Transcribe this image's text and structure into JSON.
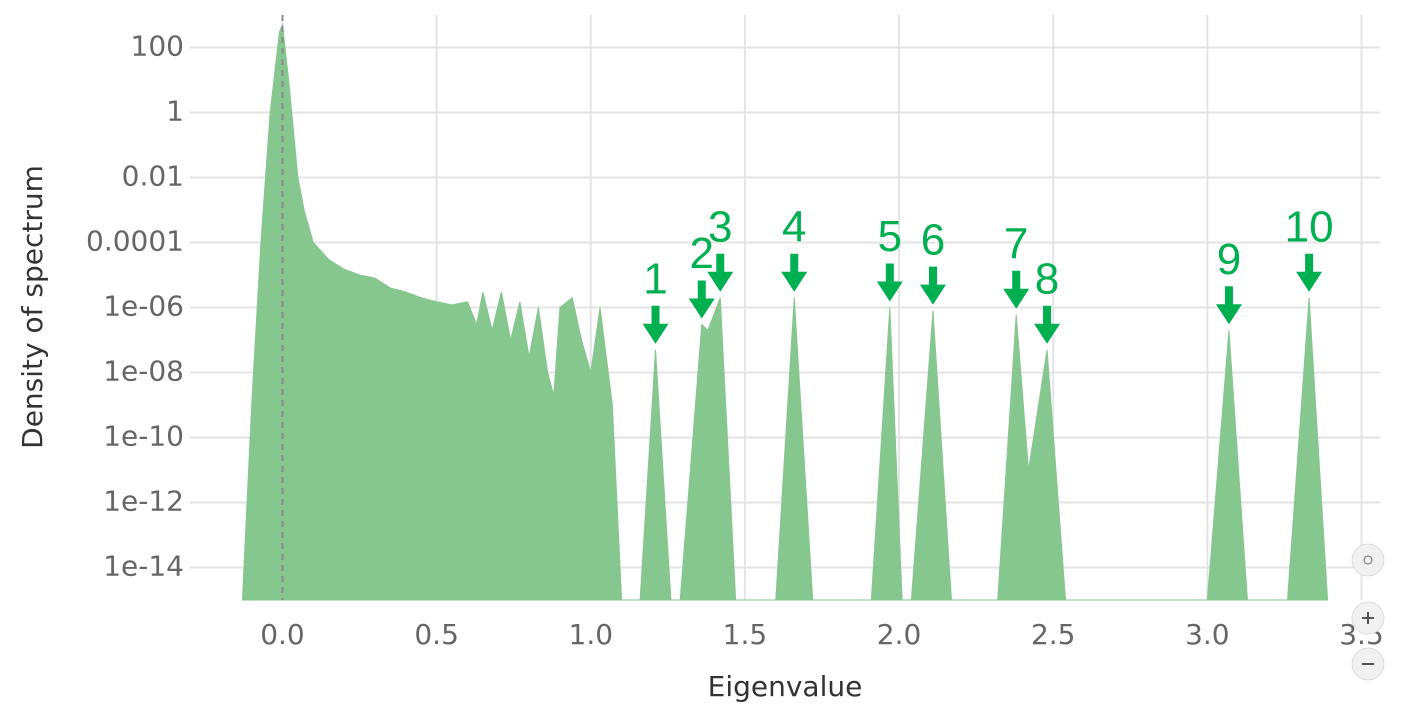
{
  "chart_data": {
    "type": "area",
    "x_label": "Eigenvalue",
    "y_label": "Density of spectrum",
    "log_y": true,
    "grid": true,
    "color": "#86c78f",
    "annotation_color": "#00b050",
    "xlim": [
      -0.3,
      3.56
    ],
    "ylim": [
      1e-15,
      1000
    ],
    "xticks": [
      {
        "value": 0,
        "label": "0.0"
      },
      0.5,
      {
        "value": 1,
        "label": "1.0"
      },
      1.5,
      {
        "value": 2,
        "label": "2.0"
      },
      2.5,
      {
        "value": 3,
        "label": "3.0"
      },
      3.5
    ],
    "yticks": [
      100,
      1,
      0.01,
      0.0001,
      {
        "value": 1e-06,
        "label": "1e-06"
      },
      {
        "value": 1e-08,
        "label": "1e-08"
      },
      {
        "value": 1e-10,
        "label": "1e-10"
      },
      {
        "value": 1e-12,
        "label": "1e-12"
      },
      {
        "value": 1e-14,
        "label": "1e-14"
      }
    ],
    "x": [
      -0.13,
      -0.1,
      -0.07,
      -0.04,
      -0.01,
      0.0,
      0.02,
      0.05,
      0.07,
      0.1,
      0.15,
      0.2,
      0.25,
      0.3,
      0.35,
      0.4,
      0.45,
      0.5,
      0.55,
      0.6,
      0.63,
      0.65,
      0.68,
      0.71,
      0.74,
      0.77,
      0.8,
      0.83,
      0.86,
      0.88,
      0.9,
      0.94,
      0.97,
      1.0,
      1.03,
      1.07,
      1.1,
      1.16,
      1.21,
      1.26,
      1.29,
      1.36,
      1.38,
      1.42,
      1.47,
      1.6,
      1.66,
      1.72,
      1.91,
      1.97,
      2.01,
      2.04,
      2.11,
      2.17,
      2.32,
      2.38,
      2.42,
      2.48,
      2.54,
      3.0,
      3.07,
      3.13,
      3.26,
      3.33,
      3.39
    ],
    "values": [
      1e-15,
      1e-09,
      0.0001,
      1,
      300,
      500,
      10,
      0.01,
      0.001,
      0.0001,
      3e-05,
      1.5e-05,
      1e-05,
      8e-06,
      4e-06,
      3e-06,
      2e-06,
      1.5e-06,
      1.2e-06,
      1.5e-06,
      3e-07,
      3e-06,
      2e-07,
      3e-06,
      1e-07,
      1.5e-06,
      3e-08,
      1e-06,
      1e-08,
      2e-09,
      1e-06,
      2e-06,
      1e-07,
      1e-08,
      1e-06,
      1e-09,
      1e-15,
      1e-15,
      5e-08,
      1e-15,
      1e-15,
      3e-07,
      2e-07,
      2e-06,
      1e-15,
      1e-15,
      2e-06,
      1e-15,
      1e-15,
      1e-06,
      1e-15,
      1e-15,
      8e-07,
      1e-15,
      1e-15,
      6e-07,
      1e-11,
      5e-08,
      1e-15,
      1e-15,
      2e-07,
      1e-15,
      1e-15,
      2e-06,
      1e-15
    ],
    "annotations": [
      {
        "text": "1",
        "x": 1.21,
        "y": 5e-08
      },
      {
        "text": "2",
        "x": 1.36,
        "y": 3e-07
      },
      {
        "text": "3",
        "x": 1.42,
        "y": 2e-06
      },
      {
        "text": "4",
        "x": 1.66,
        "y": 2e-06
      },
      {
        "text": "5",
        "x": 1.97,
        "y": 1e-06
      },
      {
        "text": "6",
        "x": 2.11,
        "y": 8e-07
      },
      {
        "text": "7",
        "x": 2.38,
        "y": 6e-07
      },
      {
        "text": "8",
        "x": 2.48,
        "y": 5e-08
      },
      {
        "text": "9",
        "x": 3.07,
        "y": 2e-07
      },
      {
        "text": "10",
        "x": 3.33,
        "y": 2e-06
      }
    ]
  }
}
